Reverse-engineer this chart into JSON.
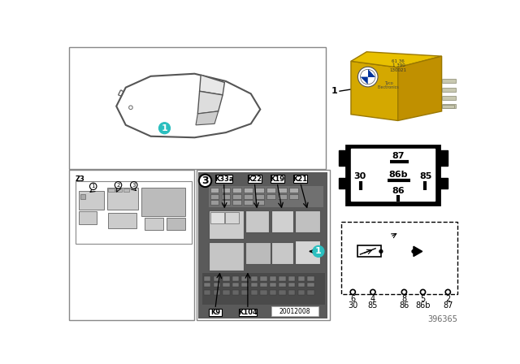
{
  "bg_color": "#ffffff",
  "ref_number": "396365",
  "watermark": "20012008",
  "z3_label": "Z3",
  "relay_color_front": "#e8c830",
  "relay_color_side": "#c8a820",
  "pin_connector": {
    "87_top": true,
    "mid": [
      "30",
      "86b",
      "85"
    ],
    "bot": "86"
  },
  "component_labels": [
    "K33a",
    "K22",
    "K19",
    "K21",
    "K9",
    "K104"
  ],
  "pin_nums": [
    "6",
    "4",
    "8",
    "5",
    "2"
  ],
  "pin_names": [
    "30",
    "85",
    "86",
    "86b",
    "87"
  ],
  "cyan": "#2bbfbf"
}
